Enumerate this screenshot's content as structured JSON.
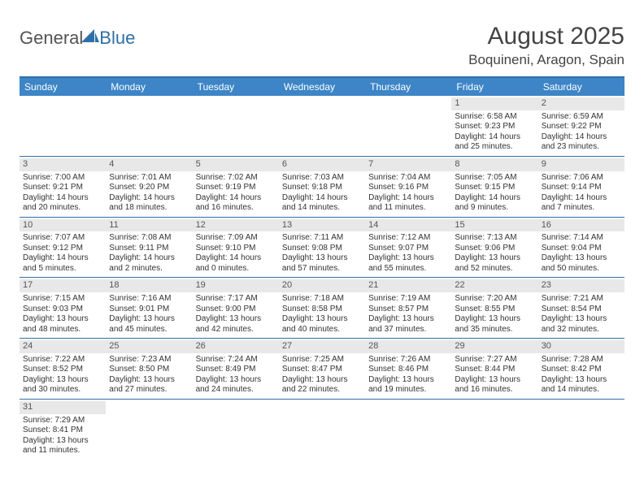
{
  "brand": {
    "part1": "General",
    "part2": "Blue"
  },
  "header": {
    "month_title": "August 2025",
    "location": "Boquineni, Aragon, Spain"
  },
  "colors": {
    "header_bar": "#3d85c6",
    "border": "#2f6fa8",
    "daynum_bg": "#e8e8e8",
    "text": "#333333",
    "bg": "#ffffff"
  },
  "typography": {
    "month_title_fontsize": 30,
    "location_fontsize": 17,
    "dow_fontsize": 12,
    "body_fontsize": 10
  },
  "days_of_week": [
    "Sunday",
    "Monday",
    "Tuesday",
    "Wednesday",
    "Thursday",
    "Friday",
    "Saturday"
  ],
  "weeks": [
    [
      null,
      null,
      null,
      null,
      null,
      {
        "n": "1",
        "sunrise": "Sunrise: 6:58 AM",
        "sunset": "Sunset: 9:23 PM",
        "daylight1": "Daylight: 14 hours",
        "daylight2": "and 25 minutes."
      },
      {
        "n": "2",
        "sunrise": "Sunrise: 6:59 AM",
        "sunset": "Sunset: 9:22 PM",
        "daylight1": "Daylight: 14 hours",
        "daylight2": "and 23 minutes."
      }
    ],
    [
      {
        "n": "3",
        "sunrise": "Sunrise: 7:00 AM",
        "sunset": "Sunset: 9:21 PM",
        "daylight1": "Daylight: 14 hours",
        "daylight2": "and 20 minutes."
      },
      {
        "n": "4",
        "sunrise": "Sunrise: 7:01 AM",
        "sunset": "Sunset: 9:20 PM",
        "daylight1": "Daylight: 14 hours",
        "daylight2": "and 18 minutes."
      },
      {
        "n": "5",
        "sunrise": "Sunrise: 7:02 AM",
        "sunset": "Sunset: 9:19 PM",
        "daylight1": "Daylight: 14 hours",
        "daylight2": "and 16 minutes."
      },
      {
        "n": "6",
        "sunrise": "Sunrise: 7:03 AM",
        "sunset": "Sunset: 9:18 PM",
        "daylight1": "Daylight: 14 hours",
        "daylight2": "and 14 minutes."
      },
      {
        "n": "7",
        "sunrise": "Sunrise: 7:04 AM",
        "sunset": "Sunset: 9:16 PM",
        "daylight1": "Daylight: 14 hours",
        "daylight2": "and 11 minutes."
      },
      {
        "n": "8",
        "sunrise": "Sunrise: 7:05 AM",
        "sunset": "Sunset: 9:15 PM",
        "daylight1": "Daylight: 14 hours",
        "daylight2": "and 9 minutes."
      },
      {
        "n": "9",
        "sunrise": "Sunrise: 7:06 AM",
        "sunset": "Sunset: 9:14 PM",
        "daylight1": "Daylight: 14 hours",
        "daylight2": "and 7 minutes."
      }
    ],
    [
      {
        "n": "10",
        "sunrise": "Sunrise: 7:07 AM",
        "sunset": "Sunset: 9:12 PM",
        "daylight1": "Daylight: 14 hours",
        "daylight2": "and 5 minutes."
      },
      {
        "n": "11",
        "sunrise": "Sunrise: 7:08 AM",
        "sunset": "Sunset: 9:11 PM",
        "daylight1": "Daylight: 14 hours",
        "daylight2": "and 2 minutes."
      },
      {
        "n": "12",
        "sunrise": "Sunrise: 7:09 AM",
        "sunset": "Sunset: 9:10 PM",
        "daylight1": "Daylight: 14 hours",
        "daylight2": "and 0 minutes."
      },
      {
        "n": "13",
        "sunrise": "Sunrise: 7:11 AM",
        "sunset": "Sunset: 9:08 PM",
        "daylight1": "Daylight: 13 hours",
        "daylight2": "and 57 minutes."
      },
      {
        "n": "14",
        "sunrise": "Sunrise: 7:12 AM",
        "sunset": "Sunset: 9:07 PM",
        "daylight1": "Daylight: 13 hours",
        "daylight2": "and 55 minutes."
      },
      {
        "n": "15",
        "sunrise": "Sunrise: 7:13 AM",
        "sunset": "Sunset: 9:06 PM",
        "daylight1": "Daylight: 13 hours",
        "daylight2": "and 52 minutes."
      },
      {
        "n": "16",
        "sunrise": "Sunrise: 7:14 AM",
        "sunset": "Sunset: 9:04 PM",
        "daylight1": "Daylight: 13 hours",
        "daylight2": "and 50 minutes."
      }
    ],
    [
      {
        "n": "17",
        "sunrise": "Sunrise: 7:15 AM",
        "sunset": "Sunset: 9:03 PM",
        "daylight1": "Daylight: 13 hours",
        "daylight2": "and 48 minutes."
      },
      {
        "n": "18",
        "sunrise": "Sunrise: 7:16 AM",
        "sunset": "Sunset: 9:01 PM",
        "daylight1": "Daylight: 13 hours",
        "daylight2": "and 45 minutes."
      },
      {
        "n": "19",
        "sunrise": "Sunrise: 7:17 AM",
        "sunset": "Sunset: 9:00 PM",
        "daylight1": "Daylight: 13 hours",
        "daylight2": "and 42 minutes."
      },
      {
        "n": "20",
        "sunrise": "Sunrise: 7:18 AM",
        "sunset": "Sunset: 8:58 PM",
        "daylight1": "Daylight: 13 hours",
        "daylight2": "and 40 minutes."
      },
      {
        "n": "21",
        "sunrise": "Sunrise: 7:19 AM",
        "sunset": "Sunset: 8:57 PM",
        "daylight1": "Daylight: 13 hours",
        "daylight2": "and 37 minutes."
      },
      {
        "n": "22",
        "sunrise": "Sunrise: 7:20 AM",
        "sunset": "Sunset: 8:55 PM",
        "daylight1": "Daylight: 13 hours",
        "daylight2": "and 35 minutes."
      },
      {
        "n": "23",
        "sunrise": "Sunrise: 7:21 AM",
        "sunset": "Sunset: 8:54 PM",
        "daylight1": "Daylight: 13 hours",
        "daylight2": "and 32 minutes."
      }
    ],
    [
      {
        "n": "24",
        "sunrise": "Sunrise: 7:22 AM",
        "sunset": "Sunset: 8:52 PM",
        "daylight1": "Daylight: 13 hours",
        "daylight2": "and 30 minutes."
      },
      {
        "n": "25",
        "sunrise": "Sunrise: 7:23 AM",
        "sunset": "Sunset: 8:50 PM",
        "daylight1": "Daylight: 13 hours",
        "daylight2": "and 27 minutes."
      },
      {
        "n": "26",
        "sunrise": "Sunrise: 7:24 AM",
        "sunset": "Sunset: 8:49 PM",
        "daylight1": "Daylight: 13 hours",
        "daylight2": "and 24 minutes."
      },
      {
        "n": "27",
        "sunrise": "Sunrise: 7:25 AM",
        "sunset": "Sunset: 8:47 PM",
        "daylight1": "Daylight: 13 hours",
        "daylight2": "and 22 minutes."
      },
      {
        "n": "28",
        "sunrise": "Sunrise: 7:26 AM",
        "sunset": "Sunset: 8:46 PM",
        "daylight1": "Daylight: 13 hours",
        "daylight2": "and 19 minutes."
      },
      {
        "n": "29",
        "sunrise": "Sunrise: 7:27 AM",
        "sunset": "Sunset: 8:44 PM",
        "daylight1": "Daylight: 13 hours",
        "daylight2": "and 16 minutes."
      },
      {
        "n": "30",
        "sunrise": "Sunrise: 7:28 AM",
        "sunset": "Sunset: 8:42 PM",
        "daylight1": "Daylight: 13 hours",
        "daylight2": "and 14 minutes."
      }
    ],
    [
      {
        "n": "31",
        "sunrise": "Sunrise: 7:29 AM",
        "sunset": "Sunset: 8:41 PM",
        "daylight1": "Daylight: 13 hours",
        "daylight2": "and 11 minutes."
      },
      null,
      null,
      null,
      null,
      null,
      null
    ]
  ]
}
